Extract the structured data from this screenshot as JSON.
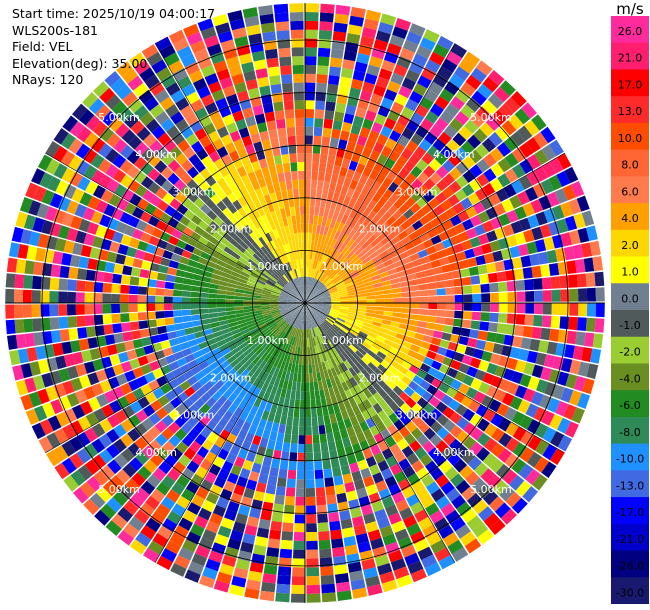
{
  "info": {
    "start_time": "Start time: 2025/10/19 04:00:17",
    "instrument": "WLS200s-181",
    "field": "Field: VEL",
    "elevation": "Elevation(deg): 35.00",
    "nrays": "NRays: 120"
  },
  "colorbar": {
    "unit": "m/s",
    "ticks": [
      "26.0",
      "21.0",
      "17.0",
      "13.0",
      "10.0",
      "8.0",
      "6.0",
      "4.0",
      "2.0",
      "1.0",
      "0.0",
      "-1.0",
      "-2.0",
      "-4.0",
      "-6.0",
      "-8.0",
      "-10.0",
      "-13.0",
      "-17.0",
      "-21.0",
      "-26.0",
      "-30.0"
    ],
    "colors": [
      "#ff2a9c",
      "#ff1f6e",
      "#ff0000",
      "#ff2a2a",
      "#ff4d00",
      "#ff6633",
      "#ff7a4d",
      "#ffa000",
      "#ffd700",
      "#ffff00",
      "#708090",
      "#505a5a",
      "#9acd32",
      "#6b8e23",
      "#228b22",
      "#2e8b57",
      "#1e90ff",
      "#4169e1",
      "#0000ff",
      "#0000cd",
      "#000080",
      "#191970"
    ]
  },
  "chart_data": {
    "type": "heatmap",
    "projection": "polar PPI",
    "field": "VEL",
    "unit": "m/s",
    "nrays": 120,
    "range_rings_km": [
      1.0,
      2.0,
      3.0,
      4.0,
      5.0
    ],
    "ring_labels": [
      "1.00km",
      "2.00km",
      "3.00km",
      "4.00km",
      "5.00km"
    ],
    "max_range_km": 5.7,
    "velocity_pattern": {
      "description_values": "approaching (negative) to south-west, receding (positive) to north-east",
      "center_velocity_ms": 0.0,
      "max_velocity_ms": 26.0,
      "min_velocity_ms": -30.0
    }
  }
}
